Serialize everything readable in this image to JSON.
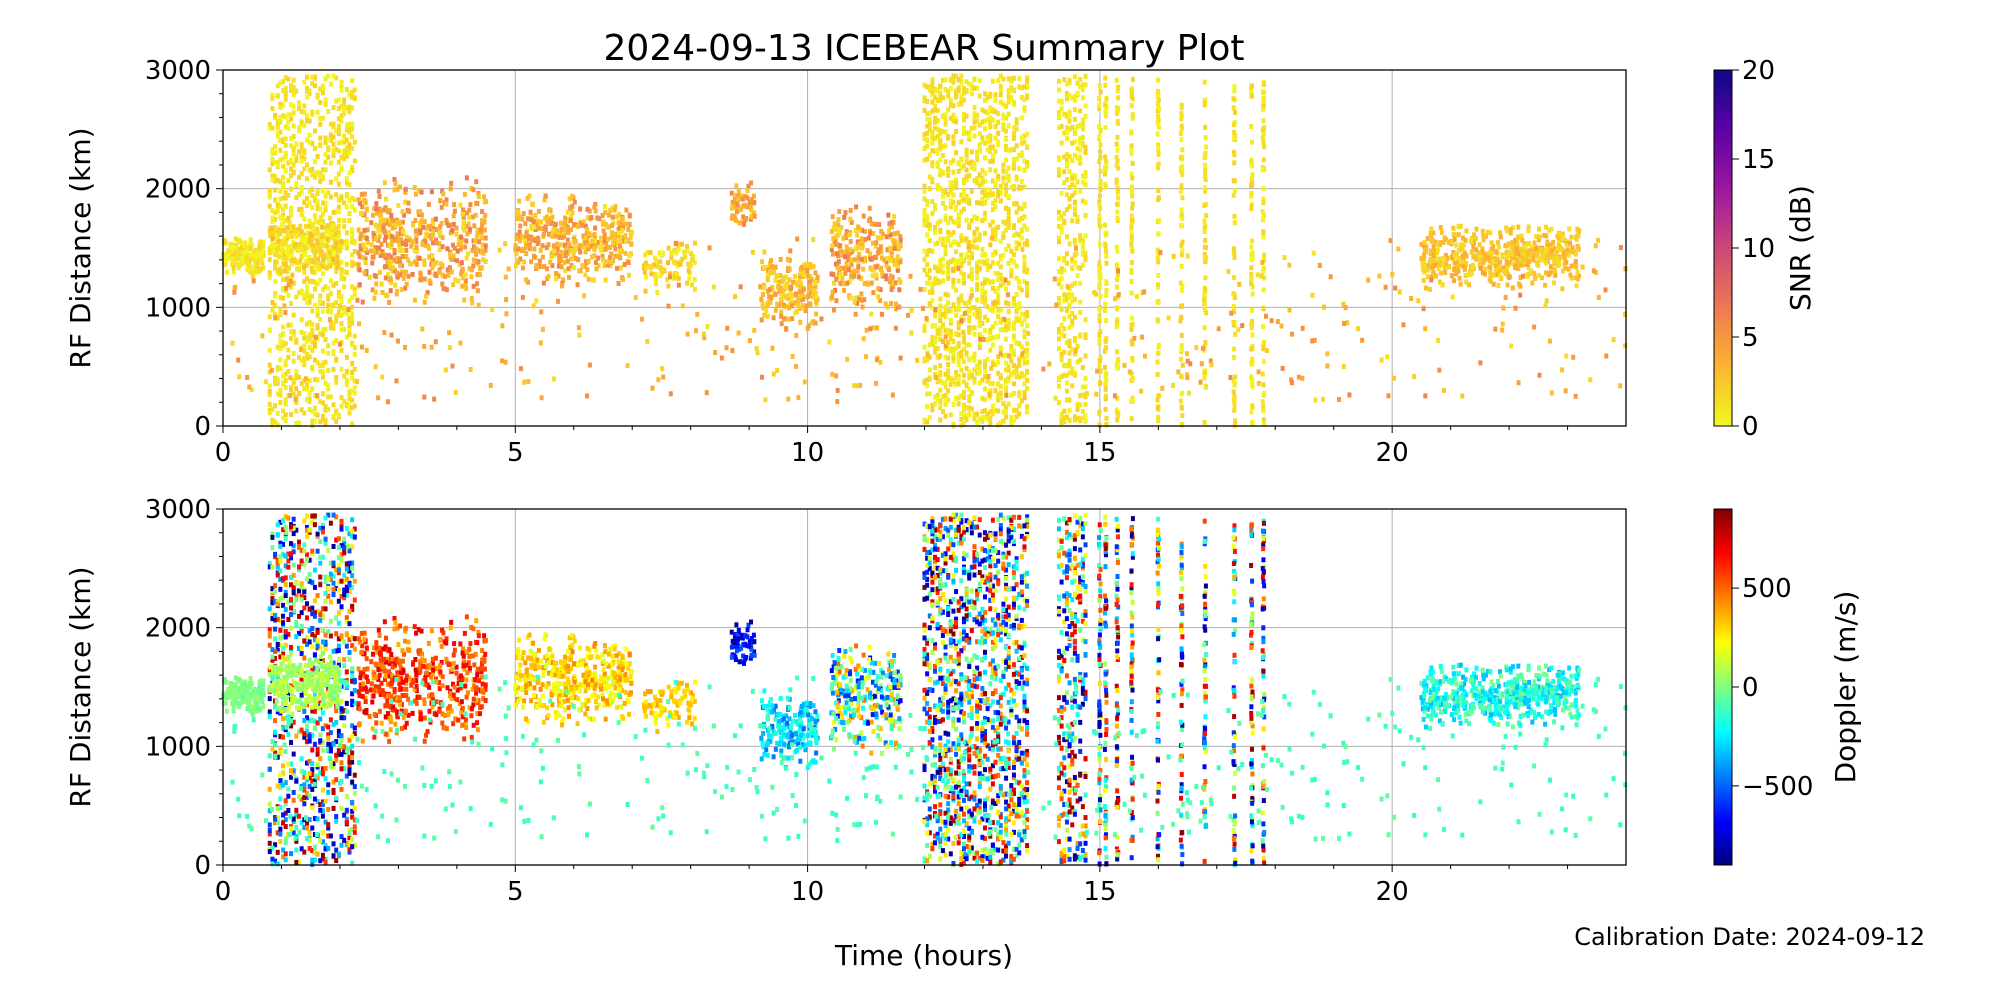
{
  "chart_data": [
    {
      "type": "scatter",
      "panel": "snr",
      "title": "2024-09-13 ICEBEAR Summary Plot",
      "xlabel": "",
      "ylabel": "RF Distance (km)",
      "xlim": [
        0,
        24
      ],
      "ylim": [
        0,
        3000
      ],
      "xticks": [
        "0",
        "5",
        "10",
        "15",
        "20"
      ],
      "yticks": [
        "0",
        "1000",
        "2000",
        "3000"
      ],
      "grid": true,
      "colorbar": {
        "label": "SNR (dB)",
        "range": [
          0,
          20
        ],
        "ticks": [
          "0",
          "5",
          "10",
          "15",
          "20"
        ],
        "colormap": [
          "#f0f921",
          "#fdb42f",
          "#ed7953",
          "#cc4778",
          "#9c179e",
          "#5c01a6",
          "#0d0887"
        ]
      },
      "color_by": "snr"
    },
    {
      "type": "scatter",
      "panel": "doppler",
      "xlabel": "Time (hours)",
      "ylabel": "RF Distance (km)",
      "xlim": [
        0,
        24
      ],
      "ylim": [
        0,
        3000
      ],
      "xticks": [
        "0",
        "5",
        "10",
        "15",
        "20"
      ],
      "yticks": [
        "0",
        "1000",
        "2000",
        "3000"
      ],
      "grid": true,
      "colorbar": {
        "label": "Doppler (m/s)",
        "range": [
          -900,
          900
        ],
        "ticks": [
          "−500",
          "0",
          "500"
        ],
        "tick_values": [
          -500,
          0,
          500
        ],
        "colormap": [
          "#7f0000",
          "#ff0000",
          "#ff8000",
          "#ffff00",
          "#80ff80",
          "#00ffff",
          "#0080ff",
          "#0000ff",
          "#00007f"
        ]
      },
      "color_by": "doppler"
    }
  ],
  "clusters": [
    {
      "kind": "blob",
      "t": [
        0.0,
        0.7
      ],
      "r": [
        1250,
        1600
      ],
      "n": 160,
      "snr": [
        0,
        2
      ],
      "doppler": [
        -50,
        50
      ]
    },
    {
      "kind": "streaks",
      "t": [
        0.8,
        2.3
      ],
      "r": [
        0,
        2950
      ],
      "n": 900,
      "snr": [
        0,
        2
      ],
      "doppler": [
        -900,
        900
      ]
    },
    {
      "kind": "blob",
      "t": [
        0.8,
        2.0
      ],
      "r": [
        1250,
        1800
      ],
      "n": 250,
      "snr": [
        0,
        3
      ],
      "doppler": [
        0,
        150
      ]
    },
    {
      "kind": "blob",
      "t": [
        2.3,
        4.5
      ],
      "r": [
        1000,
        2100
      ],
      "n": 500,
      "snr": [
        1,
        7
      ],
      "doppler": [
        350,
        750
      ]
    },
    {
      "kind": "blob",
      "t": [
        5.0,
        7.0
      ],
      "r": [
        1150,
        2000
      ],
      "n": 420,
      "snr": [
        1,
        6
      ],
      "doppler": [
        150,
        450
      ]
    },
    {
      "kind": "blob",
      "t": [
        7.2,
        8.1
      ],
      "r": [
        1100,
        1600
      ],
      "n": 80,
      "snr": [
        0,
        3
      ],
      "doppler": [
        200,
        400
      ]
    },
    {
      "kind": "blob",
      "t": [
        8.7,
        9.1
      ],
      "r": [
        1650,
        2050
      ],
      "n": 60,
      "snr": [
        2,
        6
      ],
      "doppler": [
        -850,
        -500
      ]
    },
    {
      "kind": "blob",
      "t": [
        9.2,
        10.2
      ],
      "r": [
        800,
        1500
      ],
      "n": 180,
      "snr": [
        1,
        5
      ],
      "doppler": [
        -500,
        -100
      ]
    },
    {
      "kind": "blob",
      "t": [
        10.4,
        11.6
      ],
      "r": [
        900,
        1900
      ],
      "n": 260,
      "snr": [
        1,
        7
      ],
      "doppler": [
        -700,
        500
      ]
    },
    {
      "kind": "streaks",
      "t": [
        12.0,
        13.8
      ],
      "r": [
        0,
        2950
      ],
      "n": 1300,
      "snr": [
        0,
        2
      ],
      "doppler": [
        -900,
        900
      ]
    },
    {
      "kind": "streaks",
      "t": [
        14.3,
        14.8
      ],
      "r": [
        0,
        2950
      ],
      "n": 300,
      "snr": [
        0,
        2
      ],
      "doppler": [
        -900,
        900
      ]
    },
    {
      "kind": "lines",
      "t": [
        15.0,
        15.1,
        15.3,
        15.55,
        16.0,
        16.4,
        16.8,
        17.3,
        17.6,
        17.8
      ],
      "r": [
        0,
        2950
      ],
      "n": 60,
      "snr": [
        0,
        2
      ],
      "doppler": [
        -900,
        900
      ]
    },
    {
      "kind": "blob",
      "t": [
        20.5,
        23.2
      ],
      "r": [
        1150,
        1700
      ],
      "n": 500,
      "snr": [
        1,
        4
      ],
      "doppler": [
        -350,
        0
      ]
    },
    {
      "kind": "sparse",
      "t": [
        0.0,
        24.0
      ],
      "r": [
        200,
        1600
      ],
      "n": 450,
      "snr": [
        1,
        6
      ],
      "doppler": [
        -150,
        -50
      ]
    }
  ],
  "footer": {
    "calibration": "Calibration Date: 2024-09-12"
  }
}
